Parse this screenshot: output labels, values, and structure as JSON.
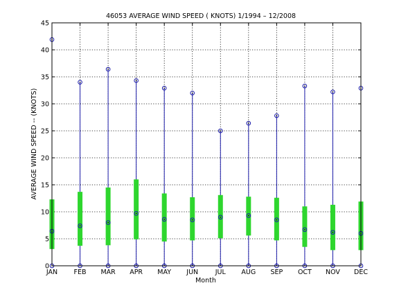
{
  "chart_data": {
    "type": "box",
    "title": "46053  AVERAGE WIND SPEED ( KNOTS) 1/1994 – 12/2008",
    "xlabel": "Month",
    "ylabel": "AVERAGE WIND SPEED -- (KNOTS)",
    "ylim": [
      0,
      45
    ],
    "yticks": [
      0,
      5,
      10,
      15,
      20,
      25,
      30,
      35,
      40,
      45
    ],
    "grid": true,
    "categories": [
      "JAN",
      "FEB",
      "MAR",
      "APR",
      "MAY",
      "JUN",
      "JUL",
      "AUG",
      "SEP",
      "OCT",
      "NOV",
      "DEC"
    ],
    "series": [
      {
        "min": [
          0,
          0,
          0,
          0,
          0,
          0,
          0,
          0,
          0,
          0,
          0,
          0
        ],
        "q1": [
          3.1,
          3.7,
          3.8,
          4.9,
          4.5,
          4.7,
          5.1,
          5.6,
          4.7,
          3.5,
          2.9,
          2.9
        ],
        "median": [
          6.4,
          7.4,
          8.0,
          9.7,
          8.6,
          8.5,
          9.0,
          9.3,
          8.5,
          6.7,
          6.2,
          6.0
        ],
        "q3": [
          12.3,
          13.7,
          14.5,
          16.0,
          13.4,
          12.7,
          13.1,
          12.8,
          12.6,
          11.0,
          11.3,
          11.9
        ],
        "max": [
          41.9,
          34.0,
          36.4,
          34.3,
          32.9,
          32.0,
          25.0,
          26.4,
          27.8,
          33.3,
          32.2,
          32.9
        ]
      }
    ],
    "colors": {
      "whisker": "#1a1aa8",
      "box": "#2ed62e",
      "marker": "#1a1aa8",
      "grid": "#000000"
    }
  }
}
